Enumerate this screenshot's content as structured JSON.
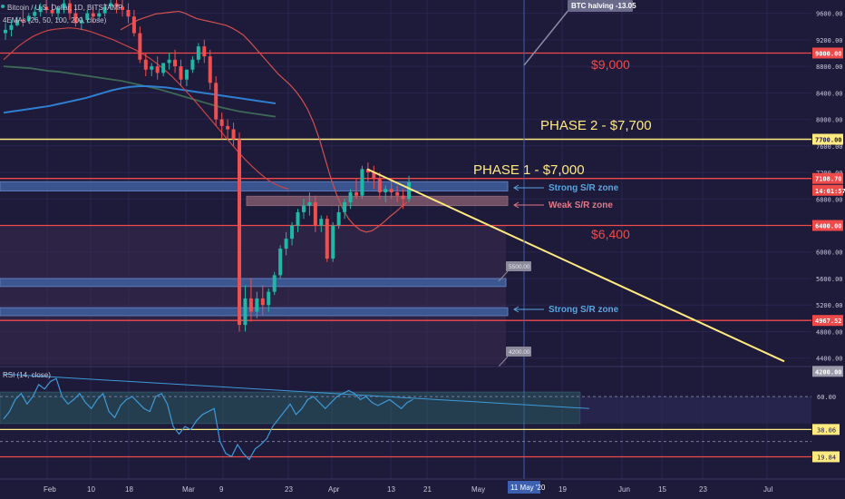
{
  "header": {
    "symbol": "Bitcoin / U.S. Dollar, 1D, BITSTAMP",
    "ema_legend": "4EMAs (26, 50, 100, 200, close)"
  },
  "rsi_panel": {
    "label": "RSI (14, close)"
  },
  "annotations": {
    "halving": "BTC halving -13.05",
    "phase2": "PHASE 2 - $7,700",
    "phase1": "PHASE 1 - $7,000",
    "level_9000": "$9,000",
    "level_6400": "$6,400",
    "strong_zone_1": "Strong S/R zone",
    "weak_zone": "Weak S/R zone",
    "strong_zone_2": "Strong S/R zone",
    "callout_5500": "5500.00",
    "callout_4200": "4200.00"
  },
  "colors": {
    "background": "#1e1a3a",
    "candle_up": "#1fb8a6",
    "candle_down": "#ef4f4f",
    "red_line": "#ef4a4a",
    "yellow_line": "#ffea80",
    "blue_zone": "#3f5f9e",
    "ema_26": "#d05050",
    "ema_50": "#c84545",
    "ema_100": "#2f7fd0",
    "ema_200": "#3c6a55",
    "rsi_line": "#3d9ad8"
  },
  "chart_data": {
    "type": "candlestick",
    "title": "Bitcoin / U.S. Dollar, 1D, BITSTAMP",
    "y_price_ticks": [
      9600,
      9200,
      8800,
      8400,
      8000,
      7600,
      7200,
      6800,
      6400,
      6000,
      5600,
      5200,
      4800,
      4400
    ],
    "y_price_range": [
      4300,
      9800
    ],
    "x_tick_labels": [
      "Feb",
      "10",
      "18",
      "Mar",
      "9",
      "23",
      "Apr",
      "13",
      "21",
      "May",
      "11 May '20",
      "19",
      "Jun",
      "15",
      "23",
      "Jul"
    ],
    "price_labels": [
      {
        "value": "9000.00",
        "price": 9000,
        "kind": "red"
      },
      {
        "value": "7700.00",
        "price": 7700,
        "kind": "yellow"
      },
      {
        "value": "7108.70",
        "price": 7108.7,
        "kind": "red"
      },
      {
        "value": "14:01:57",
        "price": 6930,
        "kind": "last"
      },
      {
        "value": "6400.00",
        "price": 6400,
        "kind": "red"
      },
      {
        "value": "4967.52",
        "price": 4967.52,
        "kind": "red"
      },
      {
        "value": "4200.00",
        "price": 4200,
        "kind": "gray"
      }
    ],
    "horizontal_levels": [
      {
        "price": 9000,
        "color": "red"
      },
      {
        "price": 7700,
        "color": "yellow"
      },
      {
        "price": 7108.7,
        "color": "red"
      },
      {
        "price": 6400,
        "color": "red"
      },
      {
        "price": 4967.52,
        "color": "red"
      }
    ],
    "zones": [
      {
        "name": "strong-sr-zone-1",
        "low": 6920,
        "high": 7060
      },
      {
        "name": "weak-sr-zone",
        "low": 6700,
        "high": 6840
      },
      {
        "name": "strong-sr-zone-2",
        "low": 5480,
        "high": 5600
      },
      {
        "name": "strong-sr-zone-3",
        "low": 5040,
        "high": 5160
      }
    ],
    "candles": [
      [
        9300,
        9450,
        9350,
        9200
      ],
      [
        9350,
        9500,
        9420,
        9250
      ],
      [
        9420,
        9550,
        9500,
        9400
      ],
      [
        9500,
        9650,
        9480,
        9400
      ],
      [
        9480,
        9600,
        9560,
        9450
      ],
      [
        9560,
        9700,
        9620,
        9500
      ],
      [
        9620,
        9750,
        9700,
        9550
      ],
      [
        9700,
        9800,
        9650,
        9600
      ],
      [
        9650,
        9750,
        9600,
        9550
      ],
      [
        9600,
        9700,
        9680,
        9500
      ],
      [
        9680,
        9800,
        9750,
        9600
      ],
      [
        9750,
        9850,
        9600,
        9500
      ],
      [
        9600,
        9700,
        9450,
        9400
      ],
      [
        9450,
        9550,
        9500,
        9350
      ],
      [
        9500,
        9650,
        9600,
        9450
      ],
      [
        9600,
        9700,
        9550,
        9450
      ],
      [
        9550,
        9650,
        9600,
        9500
      ],
      [
        9600,
        9750,
        9700,
        9550
      ],
      [
        9700,
        9800,
        9750,
        9650
      ],
      [
        9750,
        9850,
        9700,
        9600
      ],
      [
        9700,
        9800,
        9650,
        9550
      ],
      [
        9650,
        9750,
        9550,
        9450
      ],
      [
        9550,
        9650,
        9300,
        9250
      ],
      [
        9300,
        9400,
        8900,
        8850
      ],
      [
        8900,
        9000,
        8750,
        8650
      ],
      [
        8750,
        8850,
        8800,
        8650
      ],
      [
        8800,
        8950,
        8700,
        8600
      ],
      [
        8700,
        8800,
        8850,
        8650
      ],
      [
        8850,
        9000,
        8900,
        8750
      ],
      [
        8900,
        9050,
        8800,
        8700
      ],
      [
        8800,
        8900,
        8600,
        8500
      ],
      [
        8600,
        8750,
        8750,
        8500
      ],
      [
        8750,
        8950,
        8900,
        8700
      ],
      [
        8900,
        9150,
        9100,
        8850
      ],
      [
        9100,
        9200,
        8950,
        8850
      ],
      [
        8950,
        9050,
        8550,
        8450
      ],
      [
        8550,
        8650,
        8000,
        7900
      ],
      [
        8000,
        8100,
        7900,
        7700
      ],
      [
        7900,
        8000,
        7850,
        7700
      ],
      [
        7850,
        7950,
        7700,
        7600
      ],
      [
        7700,
        7800,
        4900,
        4800
      ],
      [
        4900,
        5500,
        5300,
        4800
      ],
      [
        5300,
        5600,
        5100,
        4950
      ],
      [
        5100,
        5400,
        5300,
        5000
      ],
      [
        5300,
        5500,
        5200,
        5050
      ],
      [
        5200,
        5450,
        5400,
        5100
      ],
      [
        5400,
        5700,
        5650,
        5350
      ],
      [
        5650,
        6100,
        6050,
        5600
      ],
      [
        6050,
        6300,
        6200,
        5950
      ],
      [
        6200,
        6450,
        6400,
        6100
      ],
      [
        6400,
        6650,
        6600,
        6300
      ],
      [
        6600,
        6800,
        6700,
        6500
      ],
      [
        6700,
        6900,
        6750,
        6550
      ],
      [
        6750,
        6850,
        6400,
        6300
      ],
      [
        6400,
        6550,
        6500,
        6300
      ],
      [
        6500,
        6550,
        5900,
        5850
      ],
      [
        5900,
        6450,
        6400,
        5850
      ],
      [
        6400,
        6700,
        6600,
        6350
      ],
      [
        6600,
        6800,
        6750,
        6500
      ],
      [
        6750,
        6950,
        6900,
        6650
      ],
      [
        6900,
        7100,
        6850,
        6800
      ],
      [
        6850,
        7300,
        7250,
        6800
      ],
      [
        7250,
        7350,
        7200,
        7050
      ],
      [
        7200,
        7300,
        7100,
        6950
      ],
      [
        7100,
        7200,
        6900,
        6800
      ],
      [
        6900,
        7000,
        6950,
        6750
      ],
      [
        6950,
        7100,
        6900,
        6800
      ],
      [
        6900,
        7000,
        6850,
        6750
      ],
      [
        6850,
        6950,
        6800,
        6650
      ],
      [
        6800,
        7150,
        7050,
        6750
      ]
    ],
    "ema_26": [
      9350,
      9400,
      9450,
      9500,
      9530,
      9560,
      9590,
      9600,
      9610,
      9620,
      9630,
      9600,
      9560,
      9520,
      9500,
      9480,
      9460,
      9440,
      9420,
      9380,
      9330,
      9270,
      9180,
      9080,
      8980,
      8880,
      8780,
      8680,
      8600,
      8520,
      8420,
      8300,
      8150,
      7950,
      7700,
      7400,
      7100,
      6850,
      6650,
      6500,
      6400,
      6330,
      6300,
      6320,
      6380,
      6450,
      6530,
      6600,
      6680,
      6750
    ],
    "ema_50": [
      8900,
      9000,
      9100,
      9180,
      9250,
      9300,
      9340,
      9360,
      9370,
      9380,
      9370,
      9350,
      9320,
      9280,
      9240,
      9200,
      9150,
      9100,
      9050,
      8990,
      8920,
      8840,
      8750,
      8650,
      8540,
      8420,
      8300,
      8170,
      8040,
      7910,
      7780,
      7650,
      7520,
      7400,
      7290,
      7190,
      7100,
      7030,
      6980,
      6950
    ],
    "ema_100": [
      8100,
      8120,
      8140,
      8160,
      8180,
      8200,
      8230,
      8260,
      8290,
      8320,
      8360,
      8400,
      8440,
      8470,
      8490,
      8500,
      8500,
      8490,
      8480,
      8460,
      8440,
      8420,
      8400,
      8380,
      8360,
      8340,
      8320,
      8300,
      8280,
      8260,
      8240
    ],
    "ema_200": [
      8800,
      8790,
      8780,
      8770,
      8750,
      8730,
      8720,
      8700,
      8680,
      8660,
      8640,
      8620,
      8600,
      8580,
      8550,
      8520,
      8490,
      8460,
      8420,
      8380,
      8340,
      8300,
      8260,
      8220,
      8180,
      8150,
      8120,
      8100,
      8080,
      8060,
      8040
    ],
    "rsi_y_ticks": [
      60.0,
      38.06,
      19.84
    ],
    "rsi_values": [
      45,
      50,
      58,
      62,
      55,
      60,
      68,
      65,
      70,
      72,
      60,
      55,
      58,
      62,
      56,
      52,
      58,
      62,
      50,
      46,
      54,
      58,
      60,
      56,
      52,
      50,
      60,
      62,
      55,
      40,
      35,
      40,
      38,
      44,
      48,
      50,
      52,
      30,
      22,
      20,
      28,
      22,
      18,
      25,
      28,
      32,
      40,
      45,
      50,
      55,
      48,
      52,
      58,
      60,
      56,
      52,
      56,
      60,
      62,
      64,
      62,
      58,
      60,
      56,
      54,
      56,
      58,
      55,
      52,
      56,
      58
    ],
    "rsi_trendline": [
      [
        0,
        75
      ],
      [
        30,
        65
      ]
    ],
    "trend_line": {
      "start_price": 7250,
      "end_price": 4350
    }
  }
}
